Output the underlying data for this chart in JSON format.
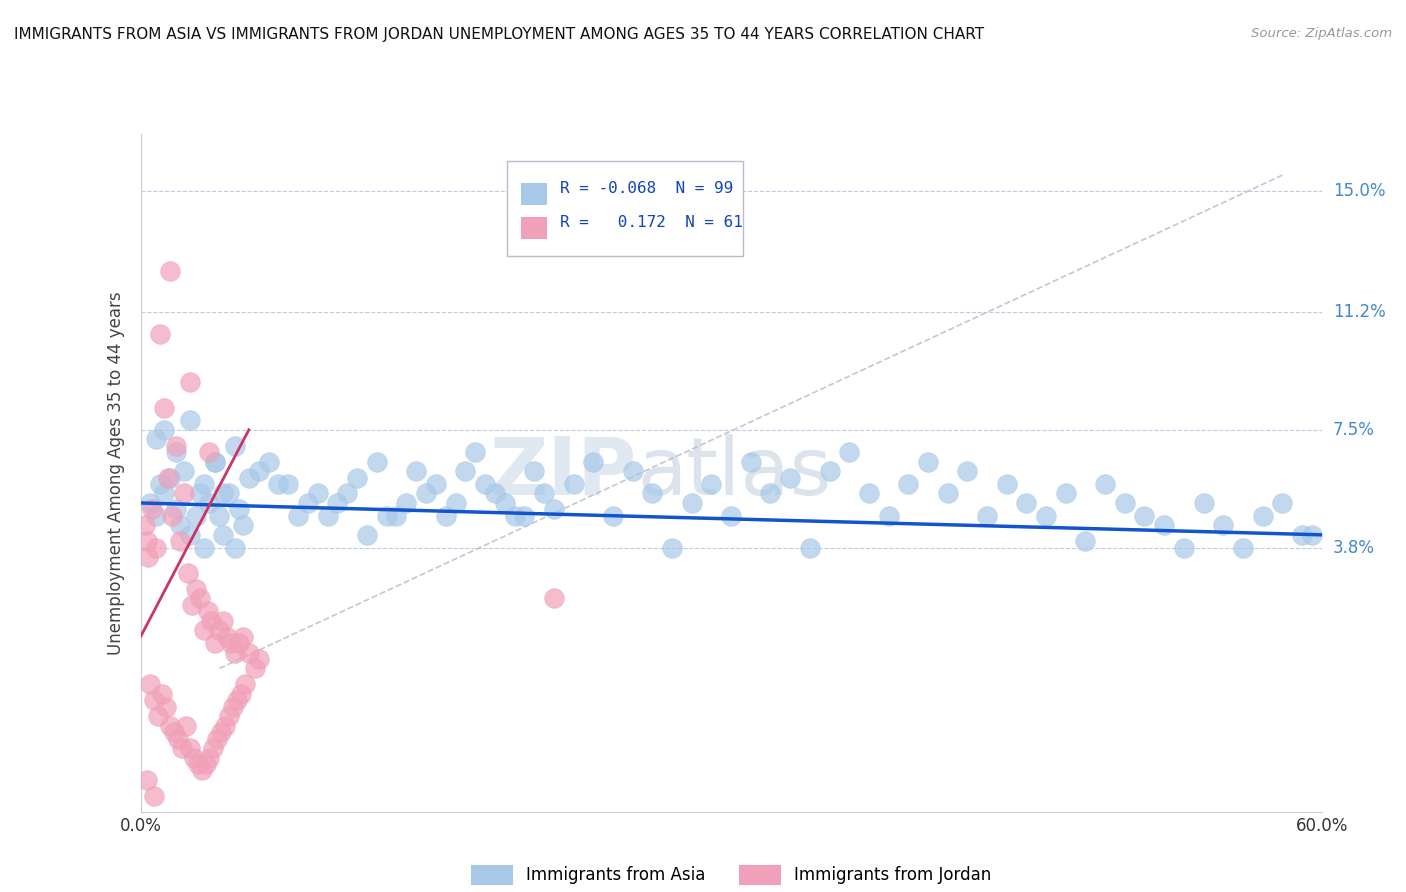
{
  "title": "IMMIGRANTS FROM ASIA VS IMMIGRANTS FROM JORDAN UNEMPLOYMENT AMONG AGES 35 TO 44 YEARS CORRELATION CHART",
  "source": "Source: ZipAtlas.com",
  "ylabel": "Unemployment Among Ages 35 to 44 years",
  "xlim": [
    0.0,
    0.6
  ],
  "ylim": [
    -0.045,
    0.168
  ],
  "yticks": [
    0.038,
    0.075,
    0.112,
    0.15
  ],
  "ytick_labels": [
    "3.8%",
    "7.5%",
    "11.2%",
    "15.0%"
  ],
  "xticks": [
    0.0,
    0.1,
    0.2,
    0.3,
    0.4,
    0.5,
    0.6
  ],
  "xtick_labels": [
    "0.0%",
    "",
    "",
    "",
    "",
    "",
    "60.0%"
  ],
  "legend_asia_R": "-0.068",
  "legend_asia_N": "99",
  "legend_jordan_R": "0.172",
  "legend_jordan_N": "61",
  "asia_color": "#a8c8e8",
  "jordan_color": "#f0a0b8",
  "trend_asia_color": "#1155cc",
  "trend_jordan_color": "#cc3366",
  "trend_dashed_color": "#c0c0c8",
  "background_color": "#ffffff",
  "watermark_zip": "ZIP",
  "watermark_atlas": "atlas",
  "asia_scatter_x": [
    0.005,
    0.008,
    0.01,
    0.012,
    0.015,
    0.018,
    0.02,
    0.022,
    0.025,
    0.028,
    0.03,
    0.032,
    0.035,
    0.038,
    0.04,
    0.042,
    0.045,
    0.048,
    0.05,
    0.052,
    0.06,
    0.07,
    0.08,
    0.09,
    0.1,
    0.11,
    0.12,
    0.13,
    0.14,
    0.15,
    0.16,
    0.17,
    0.18,
    0.19,
    0.2,
    0.21,
    0.22,
    0.23,
    0.24,
    0.25,
    0.26,
    0.27,
    0.28,
    0.29,
    0.3,
    0.31,
    0.32,
    0.33,
    0.34,
    0.35,
    0.36,
    0.37,
    0.38,
    0.39,
    0.4,
    0.41,
    0.42,
    0.43,
    0.44,
    0.45,
    0.46,
    0.47,
    0.48,
    0.49,
    0.5,
    0.51,
    0.52,
    0.53,
    0.54,
    0.55,
    0.56,
    0.57,
    0.58,
    0.59,
    0.008,
    0.012,
    0.018,
    0.025,
    0.032,
    0.038,
    0.042,
    0.048,
    0.055,
    0.065,
    0.075,
    0.085,
    0.095,
    0.105,
    0.115,
    0.125,
    0.135,
    0.145,
    0.155,
    0.165,
    0.175,
    0.185,
    0.195,
    0.205,
    0.595
  ],
  "asia_scatter_y": [
    0.052,
    0.048,
    0.058,
    0.055,
    0.06,
    0.05,
    0.045,
    0.062,
    0.042,
    0.048,
    0.055,
    0.038,
    0.052,
    0.065,
    0.048,
    0.042,
    0.055,
    0.038,
    0.05,
    0.045,
    0.062,
    0.058,
    0.048,
    0.055,
    0.052,
    0.06,
    0.065,
    0.048,
    0.062,
    0.058,
    0.052,
    0.068,
    0.055,
    0.048,
    0.062,
    0.05,
    0.058,
    0.065,
    0.048,
    0.062,
    0.055,
    0.038,
    0.052,
    0.058,
    0.048,
    0.065,
    0.055,
    0.06,
    0.038,
    0.062,
    0.068,
    0.055,
    0.048,
    0.058,
    0.065,
    0.055,
    0.062,
    0.048,
    0.058,
    0.052,
    0.048,
    0.055,
    0.04,
    0.058,
    0.052,
    0.048,
    0.045,
    0.038,
    0.052,
    0.045,
    0.038,
    0.048,
    0.052,
    0.042,
    0.072,
    0.075,
    0.068,
    0.078,
    0.058,
    0.065,
    0.055,
    0.07,
    0.06,
    0.065,
    0.058,
    0.052,
    0.048,
    0.055,
    0.042,
    0.048,
    0.052,
    0.055,
    0.048,
    0.062,
    0.058,
    0.052,
    0.048,
    0.055,
    0.042
  ],
  "jordan_scatter_x": [
    0.002,
    0.003,
    0.004,
    0.005,
    0.006,
    0.007,
    0.008,
    0.009,
    0.01,
    0.011,
    0.012,
    0.013,
    0.014,
    0.015,
    0.016,
    0.017,
    0.018,
    0.019,
    0.02,
    0.021,
    0.022,
    0.023,
    0.024,
    0.025,
    0.026,
    0.027,
    0.028,
    0.029,
    0.03,
    0.031,
    0.032,
    0.033,
    0.034,
    0.035,
    0.036,
    0.037,
    0.038,
    0.039,
    0.04,
    0.041,
    0.042,
    0.043,
    0.044,
    0.045,
    0.046,
    0.047,
    0.048,
    0.049,
    0.05,
    0.051,
    0.052,
    0.053,
    0.055,
    0.058,
    0.06,
    0.003,
    0.007,
    0.015,
    0.025,
    0.035,
    0.21
  ],
  "jordan_scatter_y": [
    0.045,
    0.04,
    0.035,
    -0.005,
    0.05,
    -0.01,
    0.038,
    -0.015,
    0.105,
    -0.008,
    0.082,
    -0.012,
    0.06,
    -0.018,
    0.048,
    -0.02,
    0.07,
    -0.022,
    0.04,
    -0.025,
    0.055,
    -0.018,
    0.03,
    -0.025,
    0.02,
    -0.028,
    0.025,
    -0.03,
    0.022,
    -0.032,
    0.012,
    -0.03,
    0.018,
    -0.028,
    0.015,
    -0.025,
    0.008,
    -0.022,
    0.012,
    -0.02,
    0.015,
    -0.018,
    0.01,
    -0.015,
    0.008,
    -0.012,
    0.005,
    -0.01,
    0.008,
    -0.008,
    0.01,
    -0.005,
    0.005,
    0.0,
    0.003,
    -0.035,
    -0.04,
    0.125,
    0.09,
    0.068,
    0.022
  ]
}
